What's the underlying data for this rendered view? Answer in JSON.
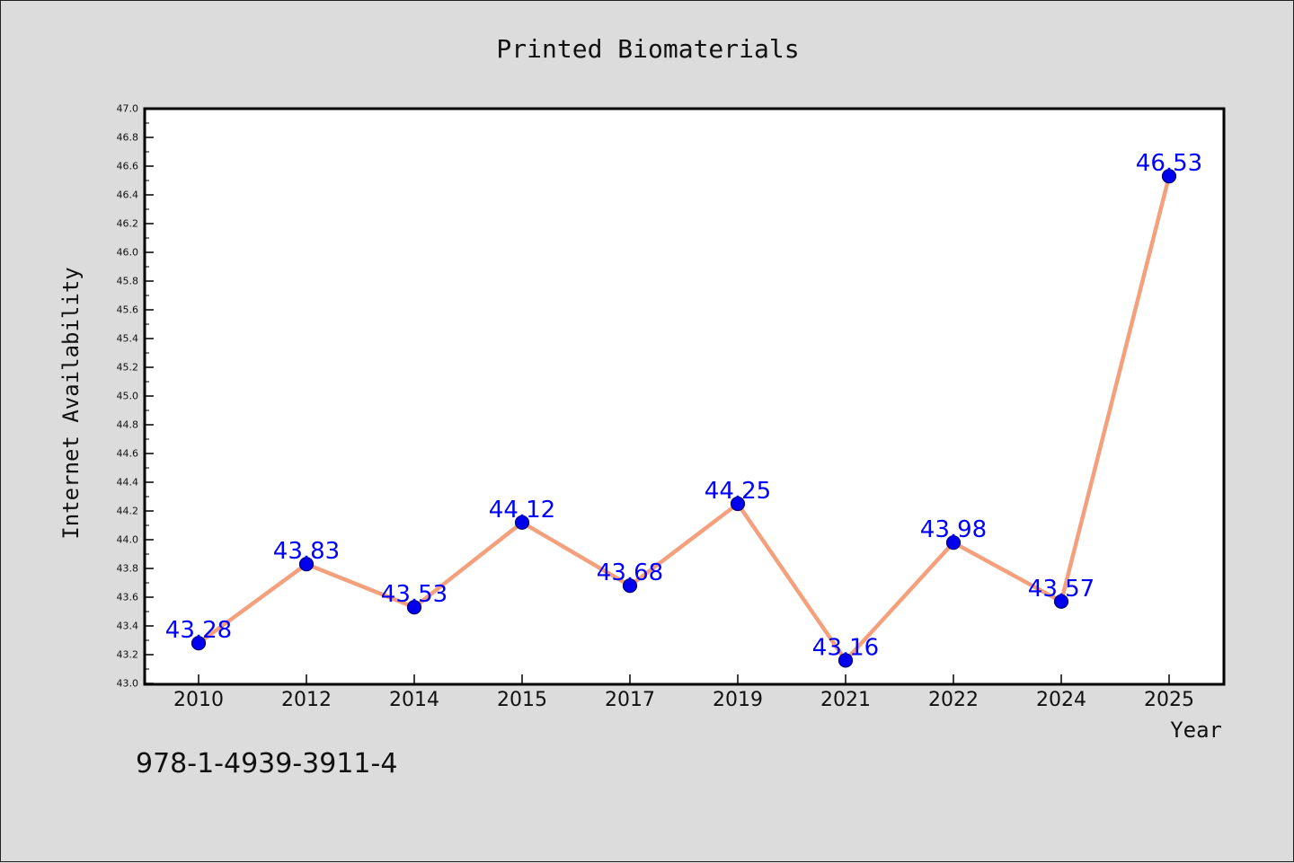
{
  "chart_data": {
    "type": "line",
    "title": "Printed Biomaterials",
    "xlabel": "Year",
    "ylabel": "Internet Availability",
    "categories": [
      "2010",
      "2012",
      "2014",
      "2015",
      "2017",
      "2019",
      "2021",
      "2022",
      "2024",
      "2025"
    ],
    "series": [
      {
        "values": [
          43.28,
          43.83,
          43.53,
          44.12,
          43.68,
          44.25,
          43.16,
          43.98,
          43.57,
          46.53
        ],
        "labels": [
          "43.28",
          "43.83",
          "43.53",
          "44.12",
          "43.68",
          "44.25",
          "43.16",
          "43.98",
          "43.57",
          "46.53"
        ]
      }
    ],
    "ylim": [
      43.0,
      47.0
    ],
    "yticks": [
      "43.0",
      "43.2",
      "43.4",
      "43.6",
      "43.8",
      "44.0",
      "44.2",
      "44.4",
      "44.6",
      "44.8",
      "45.0",
      "45.2",
      "45.4",
      "45.6",
      "45.8",
      "46.0",
      "46.2",
      "46.4",
      "46.6",
      "46.8",
      "47.0"
    ],
    "grid": false,
    "legend": "none",
    "colors": {
      "line": "#f4a07c",
      "marker": "#0000ee",
      "label": "#0000ff",
      "background": "#dcdcdc",
      "plot_background": "#ffffff"
    }
  },
  "footer_code": "978-1-4939-3911-4"
}
